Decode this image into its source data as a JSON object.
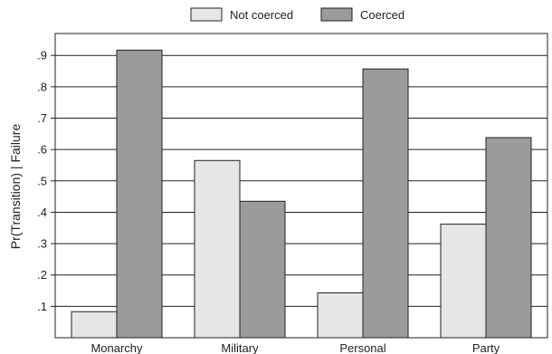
{
  "chart_data": {
    "type": "bar",
    "title": "",
    "xlabel": "",
    "ylabel": "Pr(Transition) | Failure",
    "categories": [
      "Monarchy",
      "Military",
      "Personal",
      "Party"
    ],
    "series": [
      {
        "name": "Not coerced",
        "values": [
          0.083,
          0.565,
          0.143,
          0.362
        ],
        "color": "#e6e6e6"
      },
      {
        "name": "Coerced",
        "values": [
          0.917,
          0.435,
          0.857,
          0.638
        ],
        "color": "#9b9b9b"
      }
    ],
    "ylim": [
      0,
      0.97
    ],
    "yticks": [
      0.1,
      0.2,
      0.3,
      0.4,
      0.5,
      0.6,
      0.7,
      0.8,
      0.9
    ],
    "ytick_labels": [
      ".1",
      ".2",
      ".3",
      ".4",
      ".5",
      ".6",
      ".7",
      ".8",
      ".9"
    ],
    "grid": true,
    "legend_position": "top-center"
  }
}
